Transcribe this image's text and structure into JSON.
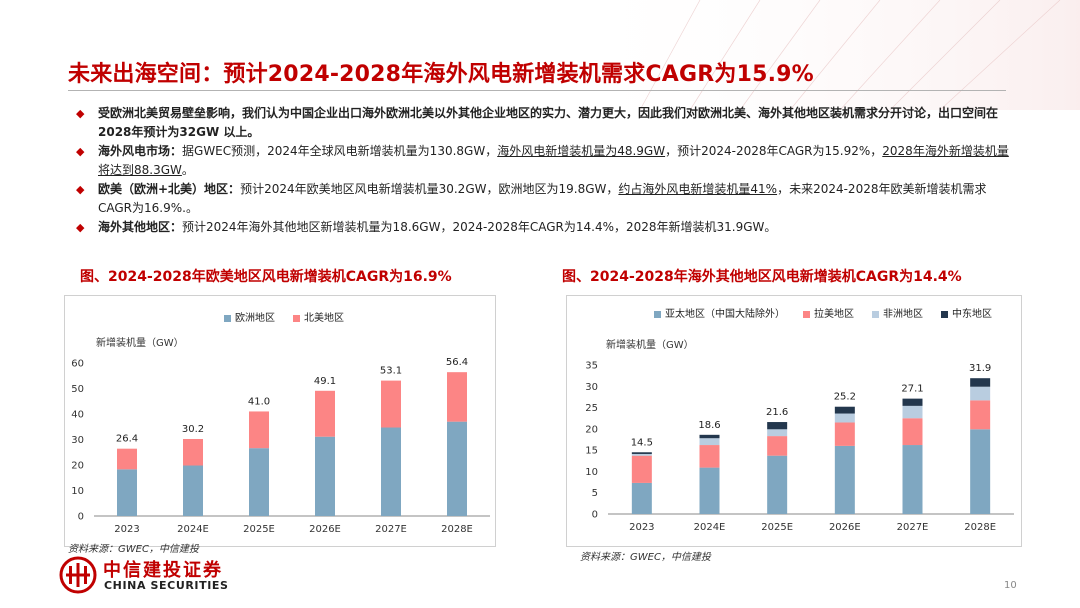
{
  "title": "未来出海空间：预计2024-2028年海外风电新增装机需求CAGR为15.9%",
  "bullets": [
    {
      "bold": "",
      "segments": [
        {
          "t": "受欧洲北美贸易壁垒影响，我们认为中国企业出口海外欧洲北美以外其他企业地区的实力、潜力更大，因此我们对欧洲北美、海外其他地区装机需求分开讨论，出口空间在2028年预计为32GW 以上。",
          "u": false,
          "b": true
        }
      ]
    },
    {
      "bold": "海外风电市场：",
      "segments": [
        {
          "t": "据GWEC预测，2024年全球风电新增装机量为130.8GW，",
          "u": false
        },
        {
          "t": "海外风电新增装机量为48.9GW",
          "u": true
        },
        {
          "t": "，预计2024-2028年CAGR为15.92%，",
          "u": false
        },
        {
          "t": "2028年海外新增装机量将达到88.3GW",
          "u": true
        },
        {
          "t": "。",
          "u": false
        }
      ]
    },
    {
      "bold": "欧美（欧洲+北美）地区：",
      "segments": [
        {
          "t": "预计2024年欧美地区风电新增装机量30.2GW，欧洲地区为19.8GW，",
          "u": false
        },
        {
          "t": "约占海外风电新增装机量41%",
          "u": true
        },
        {
          "t": "，未来2024-2028年欧美新增装机需求CAGR为16.9%.。",
          "u": false
        }
      ]
    },
    {
      "bold": "海外其他地区：",
      "segments": [
        {
          "t": "预计2024年海外其他地区新增装机量为18.6GW，2024-2028年CAGR为14.4%，2028年新增装机31.9GW。",
          "u": false
        }
      ]
    }
  ],
  "charts_meta": [
    {
      "title": "图、2024-2028年欧美地区风电新增装机CAGR为16.9%",
      "unit": "新增装机量（GW）",
      "source": "资料来源：GWEC，中信建投"
    },
    {
      "title": "图、2024-2028年海外其他地区风电新增装机CAGR为14.4%",
      "unit": "新增装机量（GW）",
      "source": "资料来源：GWEC，中信建投"
    }
  ],
  "chart_data": [
    {
      "type": "bar",
      "stacked": true,
      "title": "图、2024-2028年欧美地区风电新增装机CAGR为16.9%",
      "ylabel": "新增装机量（GW）",
      "categories": [
        "2023",
        "2024E",
        "2025E",
        "2026E",
        "2027E",
        "2028E"
      ],
      "ylim": [
        0,
        60
      ],
      "yticks": [
        0,
        10,
        20,
        30,
        40,
        50,
        60
      ],
      "series": [
        {
          "name": "欧洲地区",
          "color": "#7fa7c1",
          "values": [
            18.3,
            19.8,
            26.6,
            31.1,
            34.7,
            37.0
          ]
        },
        {
          "name": "北美地区",
          "color": "#fc8585",
          "values": [
            8.1,
            10.4,
            14.4,
            18.0,
            18.4,
            19.4
          ]
        }
      ],
      "totals": [
        "26.4",
        "30.2",
        "41.0",
        "49.1",
        "53.1",
        "56.4"
      ],
      "legend": "top-center",
      "grid": false
    },
    {
      "type": "bar",
      "stacked": true,
      "title": "图、2024-2028年海外其他地区风电新增装机CAGR为14.4%",
      "ylabel": "新增装机量（GW）",
      "categories": [
        "2023",
        "2024E",
        "2025E",
        "2026E",
        "2027E",
        "2028E"
      ],
      "ylim": [
        0,
        35
      ],
      "yticks": [
        0,
        5,
        10,
        15,
        20,
        25,
        30,
        35
      ],
      "series": [
        {
          "name": "亚太地区（中国大陆除外）",
          "color": "#7fa7c1",
          "values": [
            7.3,
            10.9,
            13.7,
            16.0,
            16.2,
            19.9
          ]
        },
        {
          "name": "拉美地区",
          "color": "#fc8585",
          "values": [
            6.4,
            5.3,
            4.6,
            5.5,
            6.3,
            6.8
          ]
        },
        {
          "name": "非洲地区",
          "color": "#b9cde0",
          "values": [
            0.4,
            1.6,
            1.6,
            2.1,
            2.9,
            3.2
          ]
        },
        {
          "name": "中东地区",
          "color": "#23374d",
          "values": [
            0.4,
            0.8,
            1.7,
            1.6,
            1.7,
            2.0
          ]
        }
      ],
      "totals": [
        "14.5",
        "18.6",
        "21.6",
        "25.2",
        "27.1",
        "31.9"
      ],
      "legend": "top-center",
      "grid": false
    }
  ],
  "brand": {
    "cn": "中信建投证券",
    "en": "CHINA SECURITIES",
    "accent": "#c00000"
  },
  "page_number": "10"
}
